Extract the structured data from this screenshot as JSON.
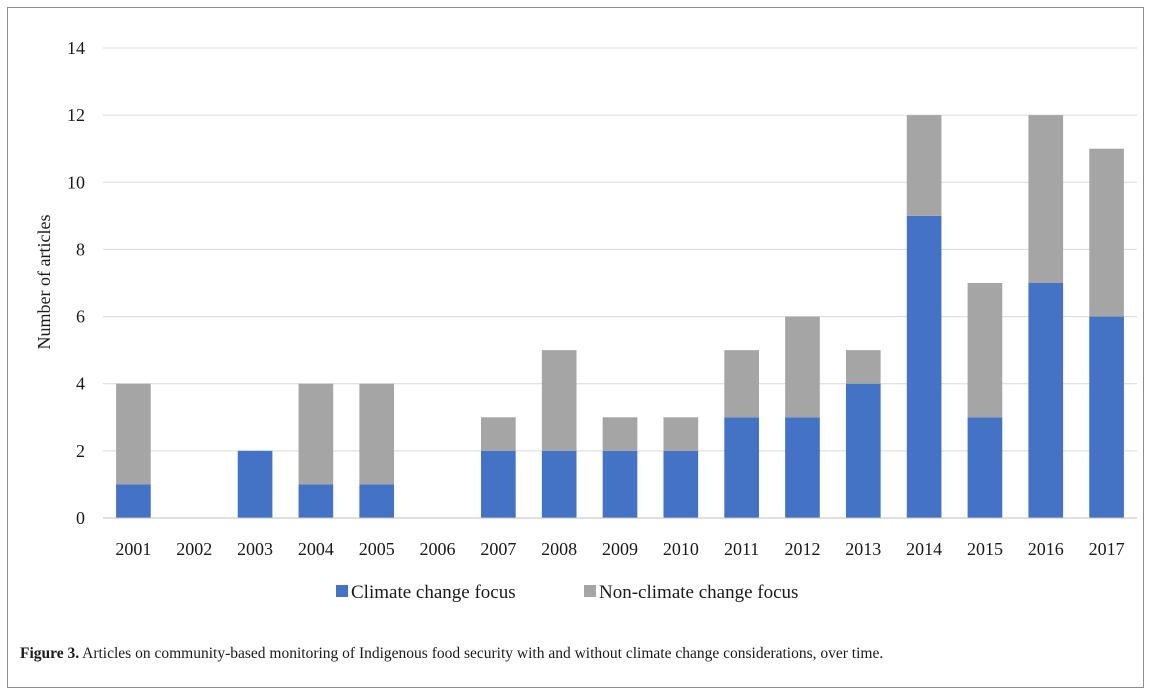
{
  "chart_data": {
    "type": "bar",
    "stacked": true,
    "categories": [
      "2001",
      "2002",
      "2003",
      "2004",
      "2005",
      "2006",
      "2007",
      "2008",
      "2009",
      "2010",
      "2011",
      "2012",
      "2013",
      "2014",
      "2015",
      "2016",
      "2017"
    ],
    "series": [
      {
        "name": "Climate change focus",
        "color": "#4472c4",
        "values": [
          1,
          0,
          2,
          1,
          1,
          0,
          2,
          2,
          2,
          2,
          3,
          3,
          4,
          9,
          3,
          7,
          6
        ]
      },
      {
        "name": "Non-climate change focus",
        "color": "#a5a5a5",
        "values": [
          3,
          0,
          0,
          3,
          3,
          0,
          1,
          3,
          1,
          1,
          2,
          3,
          1,
          3,
          4,
          5,
          5
        ]
      }
    ],
    "ylabel": "Number of articles",
    "ylim": [
      0,
      14
    ],
    "yticks": [
      "0",
      "2",
      "4",
      "6",
      "8",
      "10",
      "12",
      "14"
    ],
    "grid": true,
    "legend": "bottom"
  },
  "caption": {
    "label": "Figure 3.",
    "text": " Articles on community-based monitoring of Indigenous food security with and without climate change considerations, over time."
  }
}
